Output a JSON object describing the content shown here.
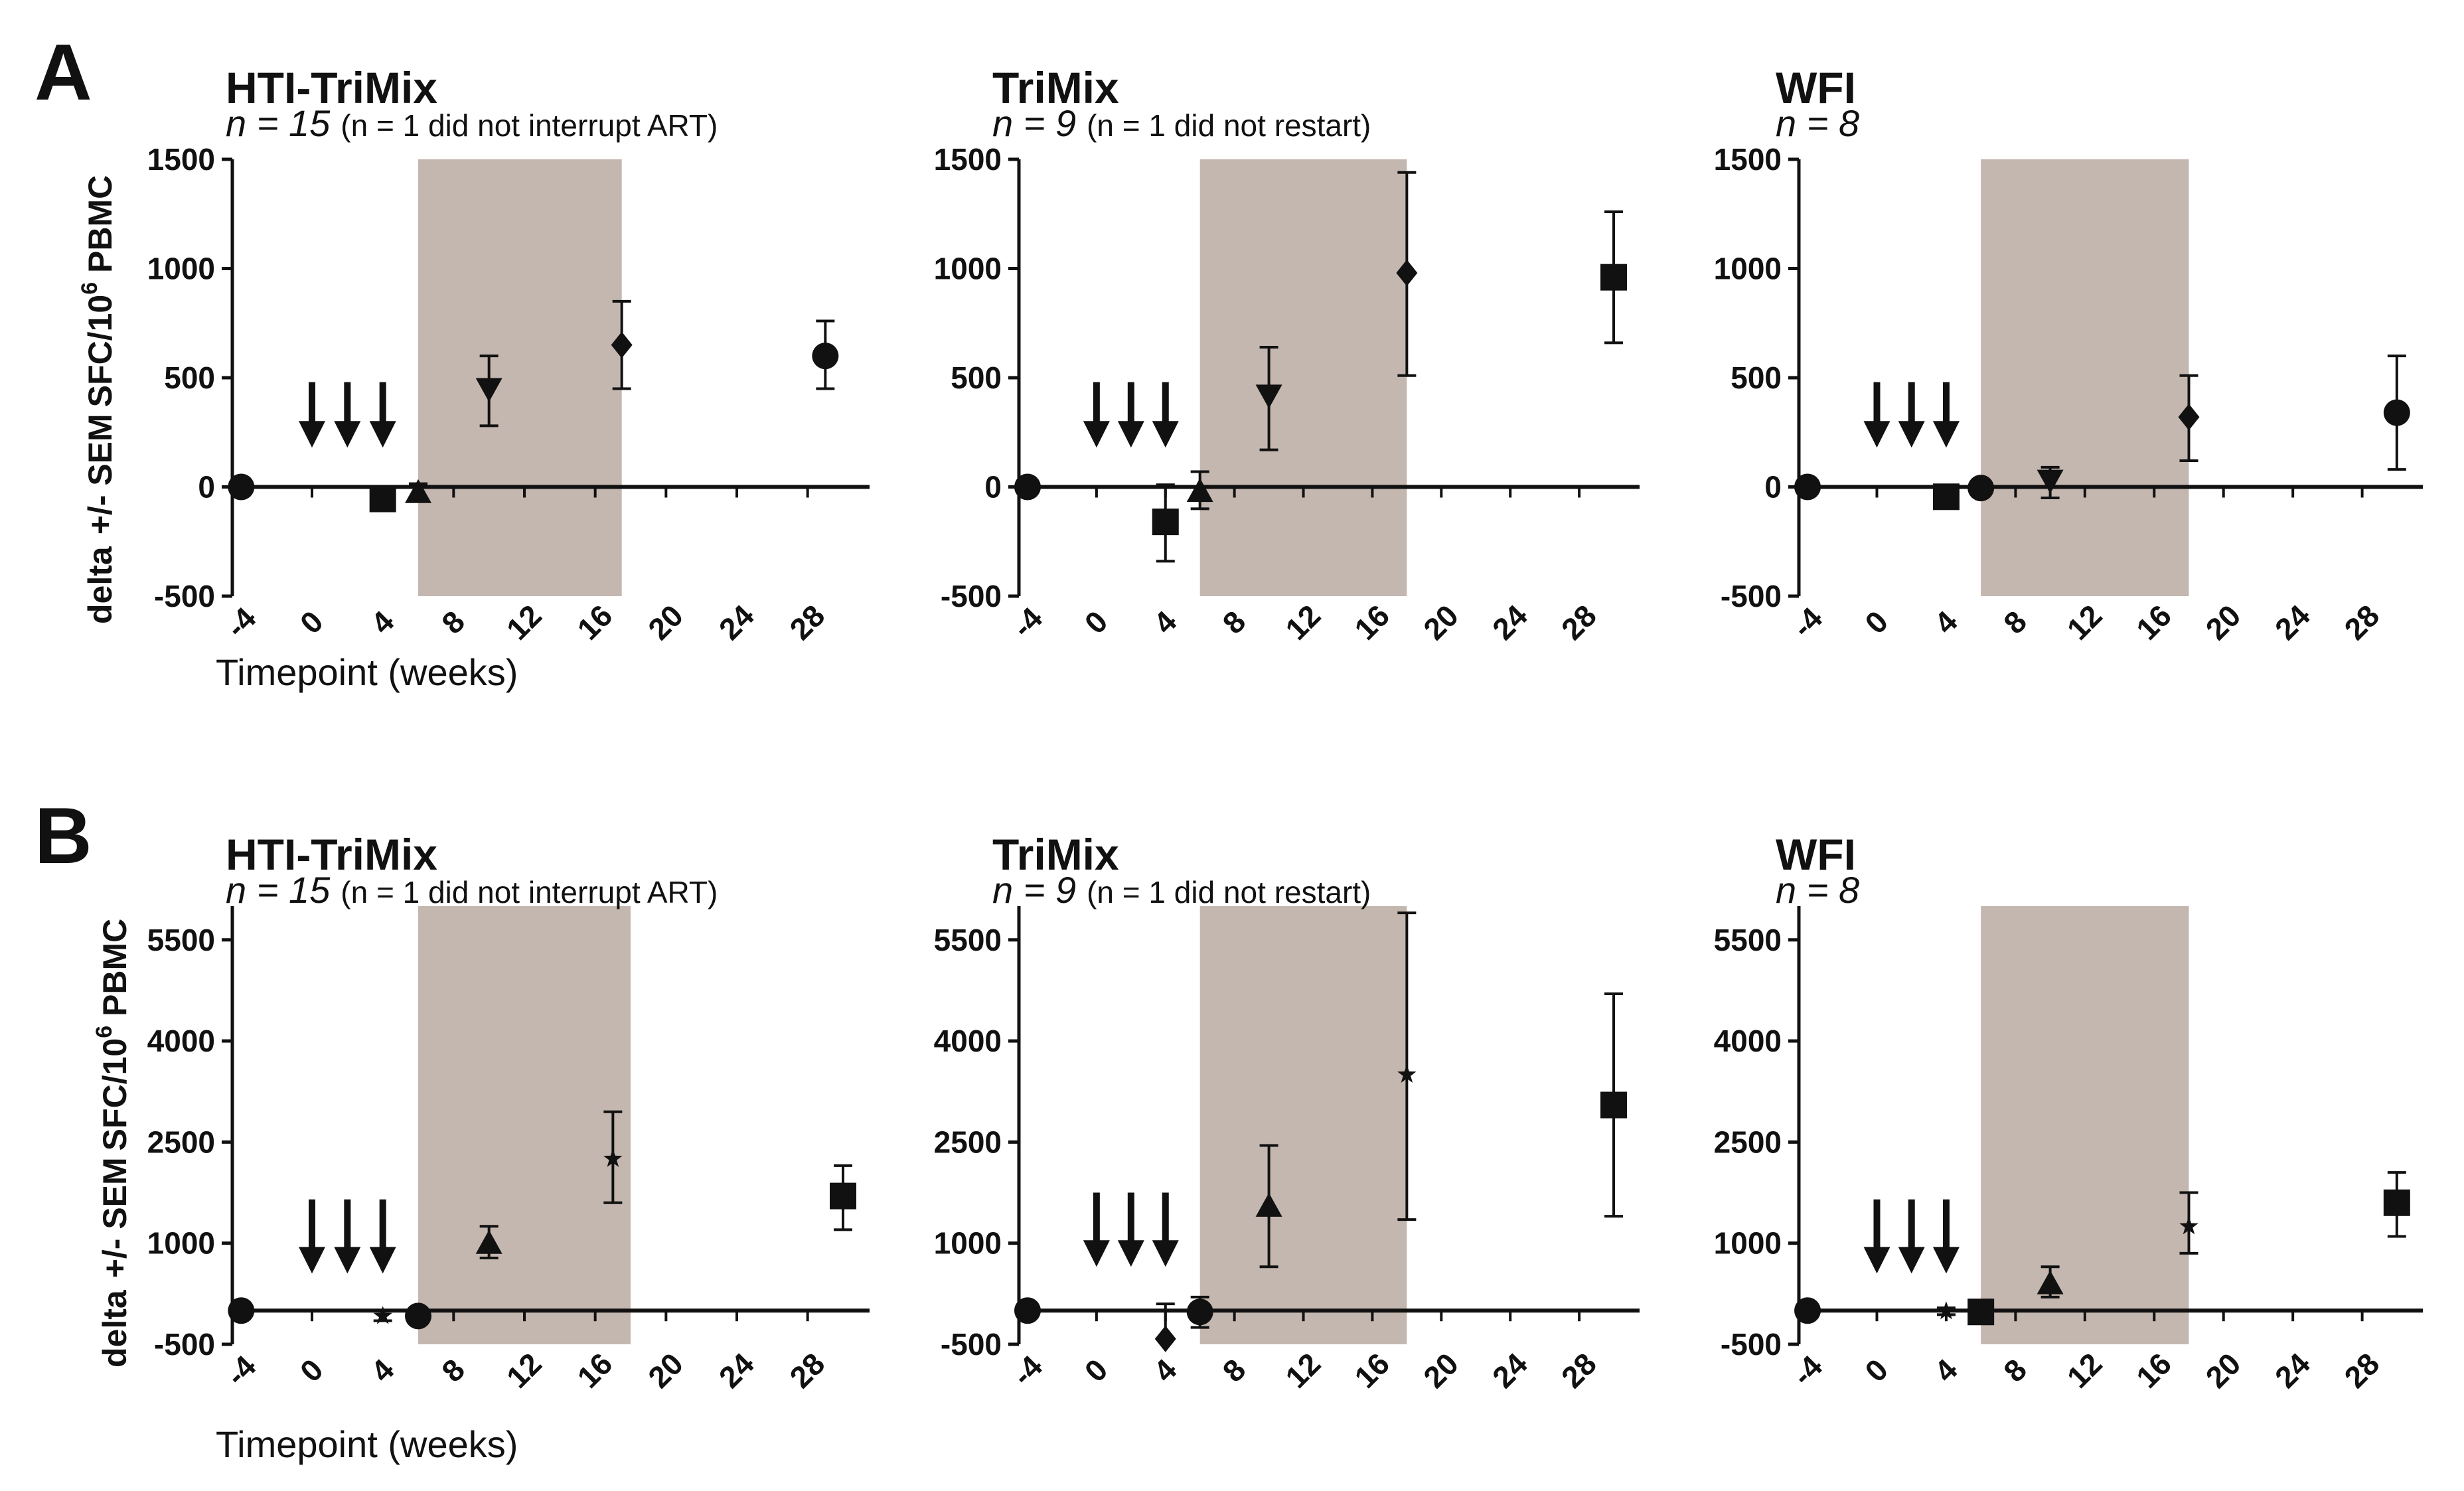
{
  "figure": {
    "panel_labels": [
      "A",
      "B"
    ],
    "y_label_prefix": "delta",
    "y_label_pm": "+/- SEM",
    "y_label_unit": "SFC/10",
    "y_label_exp": "6",
    "y_label_tail": " PBMC",
    "x_label": "Timepoint (weeks)"
  },
  "colors": {
    "shade": "#c4b7b0",
    "ink": "#111111"
  },
  "chart_data": [
    {
      "type": "scatter",
      "panel": "A",
      "title": "HTI-TriMix",
      "n_main": "n = 15",
      "n_note": "(n = 1 did not interrupt ART)",
      "xticks": [
        -4,
        0,
        4,
        8,
        12,
        16,
        20,
        24,
        28
      ],
      "xlim": [
        -4.5,
        31.5
      ],
      "yticks": [
        -500,
        0,
        500,
        1000,
        1500
      ],
      "ylim": [
        -500,
        1500
      ],
      "shade": [
        6,
        17.5
      ],
      "arrows": [
        0,
        2,
        4
      ],
      "arrow_top": 480,
      "arrow_bottom": 180,
      "points": [
        {
          "x": -4,
          "y": 0,
          "lo": 0,
          "hi": 0,
          "marker": "circle"
        },
        {
          "x": 4,
          "y": -55,
          "lo": -80,
          "hi": -30,
          "marker": "square"
        },
        {
          "x": 6,
          "y": -25,
          "lo": -60,
          "hi": 15,
          "marker": "triangle"
        },
        {
          "x": 10,
          "y": 450,
          "lo": 280,
          "hi": 600,
          "marker": "tri-down"
        },
        {
          "x": 17.5,
          "y": 650,
          "lo": 450,
          "hi": 850,
          "marker": "diamond"
        },
        {
          "x": 29,
          "y": 600,
          "lo": 450,
          "hi": 760,
          "marker": "circle"
        }
      ]
    },
    {
      "type": "scatter",
      "panel": "A",
      "title": "TriMix",
      "n_main": "n = 9",
      "n_note": "(n = 1 did not restart)",
      "xticks": [
        -4,
        0,
        4,
        8,
        12,
        16,
        20,
        24,
        28
      ],
      "xlim": [
        -4.5,
        31.5
      ],
      "yticks": [
        -500,
        0,
        500,
        1000,
        1500
      ],
      "ylim": [
        -500,
        1500
      ],
      "shade": [
        6,
        18
      ],
      "arrows": [
        0,
        2,
        4
      ],
      "arrow_top": 480,
      "arrow_bottom": 180,
      "points": [
        {
          "x": -4,
          "y": 0,
          "lo": 0,
          "hi": 0,
          "marker": "circle"
        },
        {
          "x": 4,
          "y": -160,
          "lo": -340,
          "hi": 10,
          "marker": "square"
        },
        {
          "x": 6,
          "y": -20,
          "lo": -100,
          "hi": 70,
          "marker": "triangle"
        },
        {
          "x": 10,
          "y": 420,
          "lo": 170,
          "hi": 640,
          "marker": "tri-down"
        },
        {
          "x": 18,
          "y": 980,
          "lo": 510,
          "hi": 1440,
          "marker": "diamond"
        },
        {
          "x": 30,
          "y": 960,
          "lo": 660,
          "hi": 1260,
          "marker": "square"
        }
      ]
    },
    {
      "type": "scatter",
      "panel": "A",
      "title": "WFI",
      "n_main": "n = 8",
      "n_note": "",
      "xticks": [
        -4,
        0,
        4,
        8,
        12,
        16,
        20,
        24,
        28
      ],
      "xlim": [
        -4.5,
        31.5
      ],
      "yticks": [
        -500,
        0,
        500,
        1000,
        1500
      ],
      "ylim": [
        -500,
        1500
      ],
      "shade": [
        6,
        18
      ],
      "arrows": [
        0,
        2,
        4
      ],
      "arrow_top": 480,
      "arrow_bottom": 180,
      "points": [
        {
          "x": -4,
          "y": 0,
          "lo": 0,
          "hi": 0,
          "marker": "circle"
        },
        {
          "x": 4,
          "y": -45,
          "lo": -70,
          "hi": -20,
          "marker": "square"
        },
        {
          "x": 6,
          "y": -5,
          "lo": -25,
          "hi": 15,
          "marker": "circle"
        },
        {
          "x": 10,
          "y": 30,
          "lo": -50,
          "hi": 90,
          "marker": "tri-down"
        },
        {
          "x": 18,
          "y": 320,
          "lo": 120,
          "hi": 510,
          "marker": "diamond"
        },
        {
          "x": 30,
          "y": 340,
          "lo": 80,
          "hi": 600,
          "marker": "circle"
        }
      ]
    },
    {
      "type": "scatter",
      "panel": "B",
      "title": "HTI-TriMix",
      "n_main": "n = 15",
      "n_note": "(n = 1 did not interrupt ART)",
      "xticks": [
        -4,
        0,
        4,
        8,
        12,
        16,
        20,
        24,
        28
      ],
      "xlim": [
        -4.5,
        31.5
      ],
      "yticks": [
        -500,
        1000,
        2500,
        4000,
        5500
      ],
      "ylim": [
        -500,
        6000
      ],
      "shade": [
        6,
        18
      ],
      "arrows": [
        0,
        2,
        4
      ],
      "arrow_top": 1650,
      "arrow_bottom": 550,
      "points": [
        {
          "x": -4,
          "y": 0,
          "lo": 0,
          "hi": 0,
          "marker": "circle"
        },
        {
          "x": 4,
          "y": -80,
          "lo": -150,
          "hi": 0,
          "marker": "star"
        },
        {
          "x": 6,
          "y": -80,
          "lo": -150,
          "hi": 0,
          "marker": "circle"
        },
        {
          "x": 10,
          "y": 1000,
          "lo": 780,
          "hi": 1250,
          "marker": "triangle"
        },
        {
          "x": 17,
          "y": 2250,
          "lo": 1600,
          "hi": 2950,
          "marker": "star"
        },
        {
          "x": 30,
          "y": 1700,
          "lo": 1200,
          "hi": 2150,
          "marker": "square"
        }
      ]
    },
    {
      "type": "scatter",
      "panel": "B",
      "title": "TriMix",
      "n_main": "n = 9",
      "n_note": "(n = 1 did not restart)",
      "xticks": [
        -4,
        0,
        4,
        8,
        12,
        16,
        20,
        24,
        28
      ],
      "xlim": [
        -4.5,
        31.5
      ],
      "yticks": [
        -500,
        1000,
        2500,
        4000,
        5500
      ],
      "ylim": [
        -500,
        6000
      ],
      "shade": [
        6,
        18
      ],
      "arrows": [
        0,
        2,
        4
      ],
      "arrow_top": 1750,
      "arrow_bottom": 650,
      "points": [
        {
          "x": -4,
          "y": 0,
          "lo": 0,
          "hi": 0,
          "marker": "circle"
        },
        {
          "x": 4,
          "y": -420,
          "lo": -420,
          "hi": 100,
          "marker": "diamond"
        },
        {
          "x": 6,
          "y": -20,
          "lo": -250,
          "hi": 200,
          "marker": "circle"
        },
        {
          "x": 10,
          "y": 1550,
          "lo": 650,
          "hi": 2450,
          "marker": "triangle"
        },
        {
          "x": 18,
          "y": 3500,
          "lo": 1350,
          "hi": 5900,
          "marker": "star"
        },
        {
          "x": 30,
          "y": 3050,
          "lo": 1400,
          "hi": 4700,
          "marker": "square"
        }
      ]
    },
    {
      "type": "scatter",
      "panel": "B",
      "title": "WFI",
      "n_main": "n = 8",
      "n_note": "",
      "xticks": [
        -4,
        0,
        4,
        8,
        12,
        16,
        20,
        24,
        28
      ],
      "xlim": [
        -4.5,
        31.5
      ],
      "yticks": [
        -500,
        1000,
        2500,
        4000,
        5500
      ],
      "ylim": [
        -500,
        6000
      ],
      "shade": [
        6,
        18
      ],
      "arrows": [
        0,
        2,
        4
      ],
      "arrow_top": 1650,
      "arrow_bottom": 550,
      "points": [
        {
          "x": -4,
          "y": 0,
          "lo": 0,
          "hi": 0,
          "marker": "circle"
        },
        {
          "x": 4,
          "y": -10,
          "lo": -60,
          "hi": 40,
          "marker": "star"
        },
        {
          "x": 6,
          "y": -20,
          "lo": -80,
          "hi": 40,
          "marker": "square"
        },
        {
          "x": 10,
          "y": 400,
          "lo": 200,
          "hi": 650,
          "marker": "triangle"
        },
        {
          "x": 18,
          "y": 1250,
          "lo": 850,
          "hi": 1750,
          "marker": "star"
        },
        {
          "x": 30,
          "y": 1600,
          "lo": 1100,
          "hi": 2050,
          "marker": "square"
        }
      ]
    }
  ]
}
